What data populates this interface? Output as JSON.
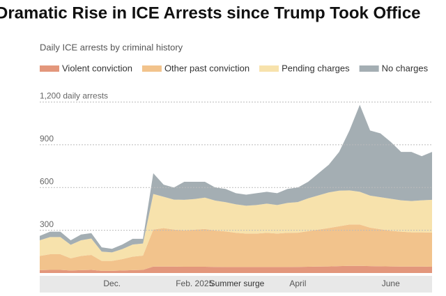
{
  "chart_data": {
    "type": "stacked_area",
    "title": "Dramatic Rise in ICE Arrests since Trump Took Office",
    "subtitle": "Daily ICE arrests by criminal history",
    "annotation": "Summer surge",
    "categories": [
      null,
      null,
      null,
      null,
      null,
      null,
      null,
      "Dec.",
      null,
      null,
      null,
      null,
      null,
      null,
      null,
      "Feb. 2025",
      null,
      null,
      null,
      null,
      null,
      null,
      null,
      null,
      null,
      "April",
      null,
      null,
      null,
      null,
      null,
      null,
      null,
      null,
      "June",
      null,
      null,
      null,
      null
    ],
    "series": [
      {
        "name": "Violent conviction",
        "color": "#e3977c",
        "values": [
          20,
          22,
          22,
          18,
          20,
          22,
          15,
          15,
          18,
          20,
          22,
          45,
          45,
          45,
          44,
          44,
          44,
          43,
          42,
          42,
          42,
          42,
          42,
          42,
          42,
          43,
          44,
          45,
          46,
          48,
          50,
          50,
          48,
          47,
          46,
          45,
          45,
          45,
          44
        ]
      },
      {
        "name": "Other past conviction",
        "color": "#f2c38c",
        "values": [
          100,
          110,
          110,
          85,
          100,
          105,
          70,
          70,
          80,
          95,
          100,
          260,
          270,
          260,
          255,
          260,
          265,
          255,
          250,
          240,
          235,
          235,
          240,
          235,
          240,
          240,
          250,
          260,
          270,
          280,
          290,
          290,
          270,
          260,
          250,
          245,
          240,
          240,
          240
        ]
      },
      {
        "name": "Pending charges",
        "color": "#f7e2ac",
        "values": [
          110,
          120,
          120,
          95,
          110,
          115,
          65,
          60,
          70,
          85,
          85,
          250,
          220,
          210,
          215,
          215,
          220,
          210,
          205,
          200,
          195,
          200,
          205,
          200,
          210,
          215,
          230,
          240,
          250,
          250,
          240,
          230,
          225,
          225,
          225,
          220,
          220,
          225,
          230
        ]
      },
      {
        "name": "No charges",
        "color": "#a4aeb3",
        "values": [
          30,
          38,
          38,
          32,
          40,
          38,
          30,
          25,
          32,
          40,
          33,
          145,
          85,
          85,
          126,
          121,
          111,
          92,
          93,
          78,
          78,
          83,
          83,
          83,
          98,
          102,
          116,
          155,
          194,
          272,
          420,
          610,
          457,
          448,
          399,
          340,
          345,
          310,
          336
        ]
      }
    ],
    "ylim": [
      0,
      1300
    ],
    "yticks": [
      300,
      600,
      900,
      {
        "value": 1200,
        "label": "1,200 daily arrests"
      }
    ],
    "grid": true
  }
}
